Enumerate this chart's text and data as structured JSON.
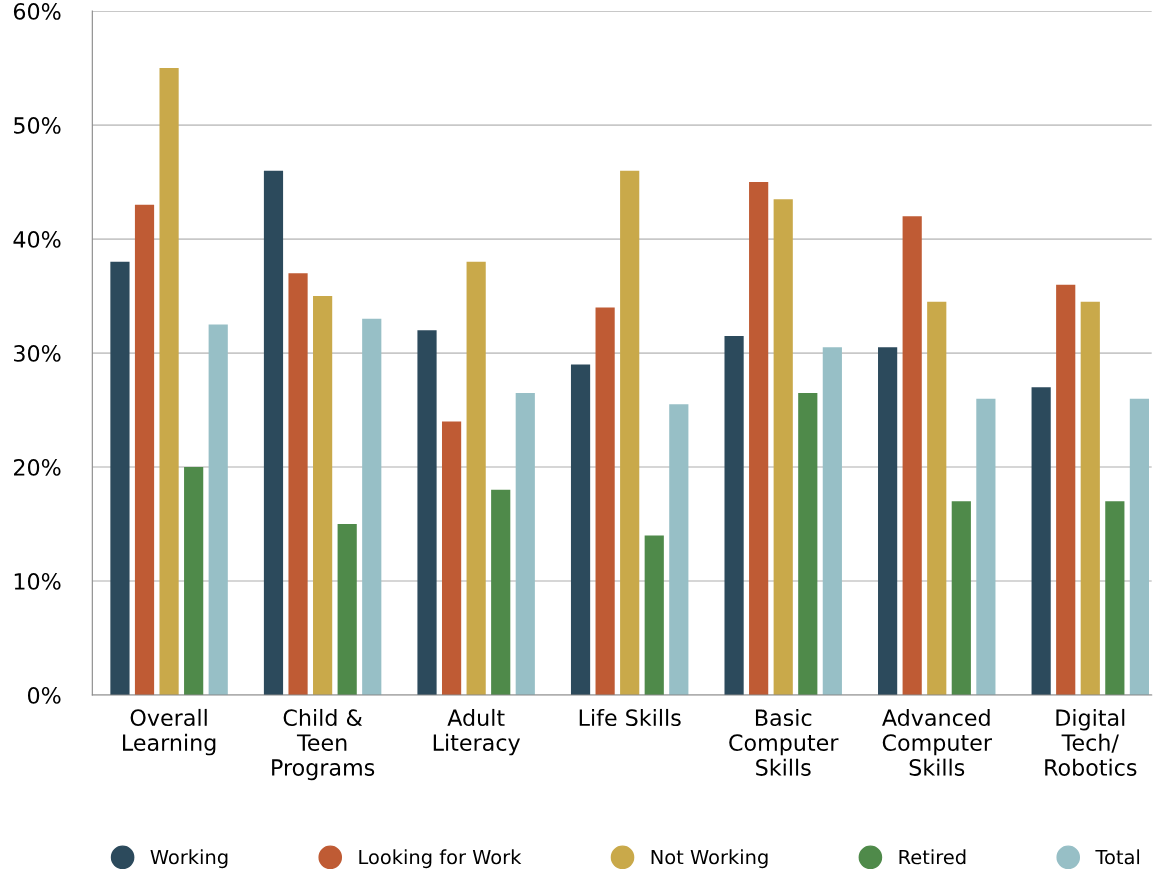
{
  "chart_data": {
    "type": "bar",
    "categories": [
      "Overall\nLearning",
      "Child &\nTeen\nPrograms",
      "Adult\nLiteracy",
      "Life Skills",
      "Basic\nComputer\nSkills",
      "Advanced\nComputer\nSkills",
      "Digital\nTech/\nRobotics"
    ],
    "series": [
      {
        "name": "Working",
        "color": "#2c4a5c",
        "values": [
          38,
          46,
          32,
          29,
          31.5,
          30.5,
          27
        ]
      },
      {
        "name": "Looking for Work",
        "color": "#bf5b34",
        "values": [
          43,
          37,
          24,
          34,
          45,
          42,
          36
        ]
      },
      {
        "name": "Not Working",
        "color": "#c9a94a",
        "values": [
          55,
          35,
          38,
          46,
          43.5,
          34.5,
          34.5
        ]
      },
      {
        "name": "Retired",
        "color": "#4f8a4a",
        "values": [
          20,
          15,
          18,
          14,
          26.5,
          17,
          17
        ]
      },
      {
        "name": "Total",
        "color": "#97bfc6",
        "values": [
          32.5,
          33,
          26.5,
          25.5,
          30.5,
          26,
          26
        ]
      }
    ],
    "ylim": [
      0,
      60
    ],
    "yticks": [
      {
        "value": 0,
        "label": "0%"
      },
      {
        "value": 10,
        "label": "10%"
      },
      {
        "value": 20,
        "label": "20%"
      },
      {
        "value": 30,
        "label": "30%"
      },
      {
        "value": 40,
        "label": "40%"
      },
      {
        "value": 50,
        "label": "50%"
      },
      {
        "value": 60,
        "label": "60%"
      }
    ],
    "grid": "y",
    "legend": "bottom",
    "marker": "circle"
  }
}
